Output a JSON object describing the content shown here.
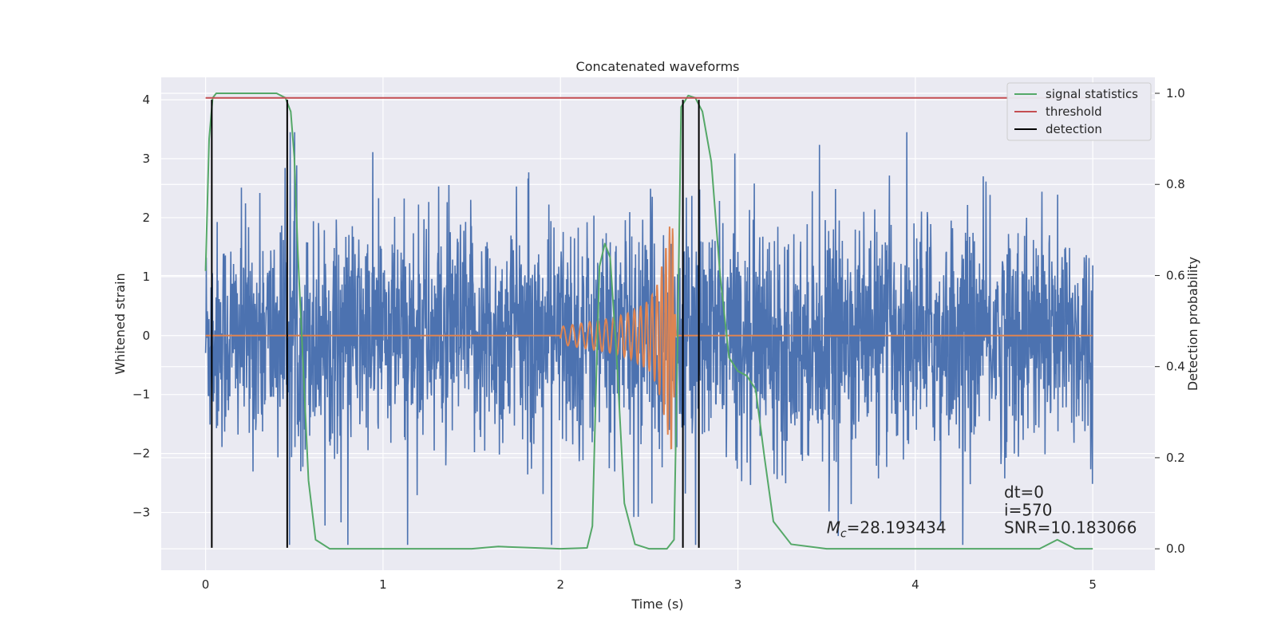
{
  "chart_data": {
    "type": "line",
    "title": "Concatenated waveforms",
    "xlabel": "Time (s)",
    "ylabel": "Whitened strain",
    "y2label": "Detection probability",
    "xlim": [
      -0.25,
      5.35
    ],
    "ylim": [
      -3.98,
      4.38
    ],
    "y2lim": [
      -0.047,
      1.035
    ],
    "x_ticks": [
      0,
      1,
      2,
      3,
      4,
      5
    ],
    "x_tick_labels": [
      "0",
      "1",
      "2",
      "3",
      "4",
      "5"
    ],
    "y_ticks": [
      -3,
      -2,
      -1,
      0,
      1,
      2,
      3,
      4
    ],
    "y_tick_labels": [
      "−3",
      "−2",
      "−1",
      "0",
      "1",
      "2",
      "3",
      "4"
    ],
    "y2_ticks": [
      0.0,
      0.2,
      0.4,
      0.6,
      0.8,
      1.0
    ],
    "y2_tick_labels": [
      "0.0",
      "0.2",
      "0.4",
      "0.6",
      "0.8",
      "1.0"
    ],
    "grid": true,
    "legend_position": "top-right",
    "legend": [
      {
        "label": "signal statistics",
        "color": "#55a868"
      },
      {
        "label": "threshold",
        "color": "#c44e52"
      },
      {
        "label": "detection",
        "color": "#000000"
      }
    ],
    "series": [
      {
        "role": "noisy strain",
        "axis": "left",
        "color": "#4c72b0",
        "description": "whitened noisy strain, approx. ±2.5 with spikes to ±3.5, sampled 0–5 s",
        "x_range": [
          0,
          5
        ],
        "amplitude": 2.6
      },
      {
        "role": "injected waveform",
        "axis": "left",
        "color": "#dd8452",
        "x": [
          0,
          2.0,
          2.1,
          2.2,
          2.3,
          2.4,
          2.5,
          2.55,
          2.6,
          2.63,
          2.65,
          5
        ],
        "envelope": [
          0,
          0.15,
          0.2,
          0.25,
          0.3,
          0.4,
          0.6,
          0.9,
          1.6,
          2.1,
          0,
          0
        ]
      },
      {
        "name": "signal statistics",
        "axis": "right",
        "color": "#55a868",
        "x": [
          0.0,
          0.02,
          0.04,
          0.06,
          0.1,
          0.2,
          0.4,
          0.45,
          0.48,
          0.5,
          0.52,
          0.55,
          0.58,
          0.62,
          0.7,
          1.0,
          1.5,
          1.65,
          2.0,
          2.15,
          2.18,
          2.2,
          2.22,
          2.25,
          2.28,
          2.32,
          2.36,
          2.42,
          2.5,
          2.6,
          2.64,
          2.66,
          2.68,
          2.72,
          2.76,
          2.8,
          2.85,
          2.9,
          2.95,
          3.0,
          3.05,
          3.1,
          3.15,
          3.2,
          3.3,
          3.5,
          4.0,
          4.7,
          4.8,
          4.9,
          5.0
        ],
        "y": [
          0.61,
          0.9,
          0.99,
          1.0,
          1.0,
          1.0,
          1.0,
          0.99,
          0.96,
          0.86,
          0.65,
          0.4,
          0.15,
          0.02,
          0.0,
          0.0,
          0.0,
          0.005,
          0.0,
          0.002,
          0.05,
          0.35,
          0.62,
          0.67,
          0.64,
          0.4,
          0.1,
          0.01,
          0.0,
          0.0,
          0.02,
          0.45,
          0.97,
          0.995,
          0.99,
          0.96,
          0.85,
          0.6,
          0.42,
          0.39,
          0.38,
          0.35,
          0.2,
          0.06,
          0.01,
          0.0,
          0.0,
          0.0,
          0.02,
          0.0,
          0.0
        ]
      },
      {
        "name": "threshold",
        "axis": "right",
        "color": "#c44e52",
        "x": [
          0,
          5
        ],
        "y": [
          0.99,
          0.99
        ]
      }
    ],
    "detections": {
      "color": "#000000",
      "x": [
        0.035,
        0.46,
        2.69,
        2.78
      ],
      "y_range": [
        -3.6,
        4.0
      ]
    },
    "annotations": [
      {
        "id": "mc",
        "symbol": "M",
        "subscript": "c",
        "text": "=28.193434",
        "x": 3.5,
        "y": -3.35
      },
      {
        "id": "dt",
        "text": "dt=0",
        "x": 4.5,
        "y": -2.75
      },
      {
        "id": "i",
        "text": "i=570",
        "x": 4.5,
        "y": -3.05
      },
      {
        "id": "snr",
        "text": "SNR=10.183066",
        "x": 4.5,
        "y": -3.35
      }
    ]
  }
}
